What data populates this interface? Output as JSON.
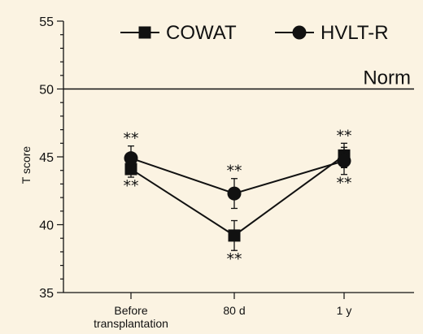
{
  "colors": {
    "background": "#FBF3E2",
    "ink": "#111111"
  },
  "chart_data": {
    "type": "line",
    "ylabel": "T score",
    "ylim": [
      35,
      55
    ],
    "yticks": [
      35,
      40,
      45,
      50,
      55
    ],
    "categories": [
      "Before transplantation",
      "80 d",
      "1 y"
    ],
    "category_lines": [
      [
        "Before",
        "transplantation"
      ],
      [
        "80 d"
      ],
      [
        "1 y"
      ]
    ],
    "norm": {
      "value": 50,
      "label": "Norm"
    },
    "legend_position": "top-right",
    "series": [
      {
        "name": "COWAT",
        "marker": "square",
        "values": [
          44.1,
          39.2,
          45.1
        ],
        "errors": [
          0.6,
          1.1,
          0.9
        ],
        "significance": [
          "**",
          "**",
          "**"
        ],
        "sig_side": [
          "below",
          "below",
          "above"
        ]
      },
      {
        "name": "HVLT-R",
        "marker": "circle",
        "values": [
          44.9,
          42.3,
          44.7
        ],
        "errors": [
          0.9,
          1.1,
          1.0
        ],
        "significance": [
          "**",
          "**",
          "**"
        ],
        "sig_side": [
          "above",
          "above",
          "below"
        ]
      }
    ]
  }
}
